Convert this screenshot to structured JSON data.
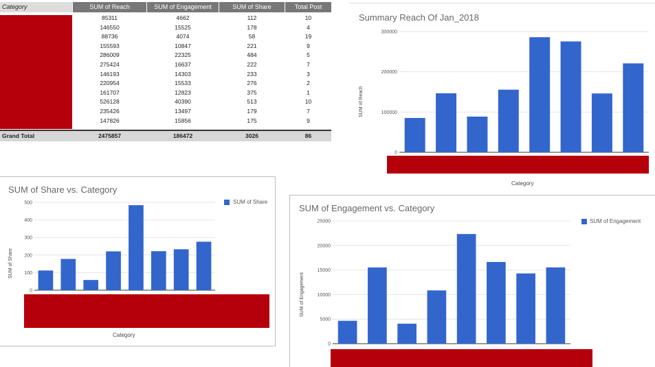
{
  "pivot": {
    "headers": [
      "Category",
      "SUM of Reach",
      "SUM of Engagement",
      "SUM of Share",
      "Total Post"
    ],
    "rows": [
      {
        "reach": "85311",
        "engagement": "4662",
        "share": "112",
        "posts": "10"
      },
      {
        "reach": "146550",
        "engagement": "15525",
        "share": "178",
        "posts": "4"
      },
      {
        "reach": "88736",
        "engagement": "4074",
        "share": "58",
        "posts": "19"
      },
      {
        "reach": "155593",
        "engagement": "10847",
        "share": "221",
        "posts": "9"
      },
      {
        "reach": "286009",
        "engagement": "22325",
        "share": "484",
        "posts": "5"
      },
      {
        "reach": "275424",
        "engagement": "16637",
        "share": "222",
        "posts": "7"
      },
      {
        "reach": "146193",
        "engagement": "14303",
        "share": "233",
        "posts": "3"
      },
      {
        "reach": "220954",
        "engagement": "15533",
        "share": "276",
        "posts": "2"
      },
      {
        "reach": "161707",
        "engagement": "12823",
        "share": "375",
        "posts": "1"
      },
      {
        "reach": "526128",
        "engagement": "40390",
        "share": "513",
        "posts": "10"
      },
      {
        "reach": "235426",
        "engagement": "13497",
        "share": "179",
        "posts": "7"
      },
      {
        "reach": "147826",
        "engagement": "15856",
        "share": "175",
        "posts": "9"
      }
    ],
    "total": {
      "label": "Grand Total",
      "reach": "2475857",
      "engagement": "186472",
      "share": "3026",
      "posts": "86"
    }
  },
  "colors": {
    "bar": "#3366cc",
    "redaction": "#b5000b",
    "header_bg": "#777777"
  },
  "chart_data": [
    {
      "id": "reach",
      "type": "bar",
      "title": "Summary Reach Of Jan_2018",
      "xlabel": "Category",
      "ylabel": "SUM of Reach",
      "ylim": [
        0,
        300000
      ],
      "yticks": [
        "0",
        "100000",
        "200000",
        "300000"
      ],
      "ytick_values": [
        0,
        100000,
        200000,
        300000
      ],
      "values": [
        85311,
        146550,
        88736,
        155593,
        286009,
        275424,
        146193,
        220954
      ],
      "grid": true,
      "legend": "none"
    },
    {
      "id": "share",
      "type": "bar",
      "title": "SUM of Share vs. Category",
      "xlabel": "Category",
      "ylabel": "SUM of Share",
      "ylim": [
        0,
        500
      ],
      "yticks": [
        "0",
        "100",
        "200",
        "300",
        "400",
        "500"
      ],
      "ytick_values": [
        0,
        100,
        200,
        300,
        400,
        500
      ],
      "values": [
        112,
        178,
        58,
        221,
        484,
        222,
        233,
        276
      ],
      "series_name": "SUM of Share",
      "grid": true,
      "legend": "top-right"
    },
    {
      "id": "engagement",
      "type": "bar",
      "title": "SUM of Engagement vs. Category",
      "xlabel": "",
      "ylabel": "SUM of Engagement",
      "ylim": [
        0,
        25000
      ],
      "yticks": [
        "0",
        "5000",
        "10000",
        "15000",
        "20000",
        "25000"
      ],
      "ytick_values": [
        0,
        5000,
        10000,
        15000,
        20000,
        25000
      ],
      "values": [
        4662,
        15525,
        4074,
        10847,
        22325,
        16637,
        14303,
        15533
      ],
      "series_name": "SUM of Engagement",
      "grid": true,
      "legend": "top-right"
    }
  ]
}
